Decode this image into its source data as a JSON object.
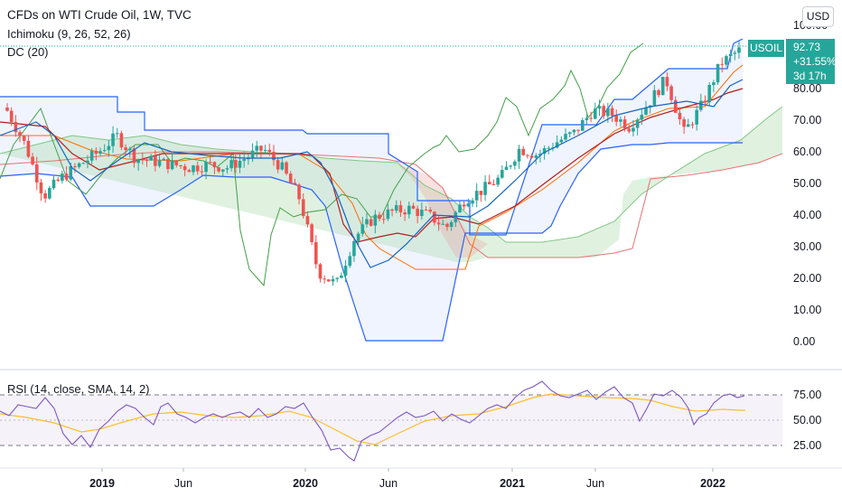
{
  "legend": {
    "title": "CFDs on WTI Crude Oil, 1W, TVC",
    "ichimoku": "Ichimoku (9, 26, 52, 26)",
    "donchian": "DC (20)",
    "rsi": "RSI (14, close, SMA, 14, 2)"
  },
  "currency": "USD",
  "last_price": {
    "ticker": "USOIL",
    "price": "92.73",
    "change": "+31.55%",
    "countdown": "3d 17h"
  },
  "colors": {
    "up": "#26a69a",
    "down": "#ef5350",
    "tenkan": "#2962ff",
    "kijun": "#b71c1c",
    "chikou": "#43a047",
    "span_a": "#a5d6a7",
    "span_b": "#ef9a9a",
    "dc_band": "#2962ff",
    "dc_basis": "#ff6d00",
    "rsi": "#7e57c2",
    "rsi_ma": "#fbc02d"
  },
  "chart_data": [
    {
      "type": "candlestick",
      "title": "CFDs on WTI Crude Oil, 1W, TVC",
      "ylim": [
        -5,
        105
      ],
      "y_ticks": [
        "100.00",
        "90.00",
        "80.00",
        "70.00",
        "60.00",
        "50.00",
        "40.00",
        "30.00",
        "20.00",
        "10.00",
        "0.00"
      ],
      "x_ticks": [
        "2019",
        "Jun",
        "2020",
        "Jun",
        "2021",
        "Jun",
        "2022"
      ],
      "x_range": [
        "2018-09",
        "2022-03"
      ],
      "close_points": [
        [
          "2018-10",
          73
        ],
        [
          "2018-11",
          62
        ],
        [
          "2018-12",
          46
        ],
        [
          "2019-01",
          52
        ],
        [
          "2019-02",
          56
        ],
        [
          "2019-03",
          60
        ],
        [
          "2019-04",
          65
        ],
        [
          "2019-05",
          58
        ],
        [
          "2019-06",
          57
        ],
        [
          "2019-07",
          56
        ],
        [
          "2019-08",
          55
        ],
        [
          "2019-09",
          56
        ],
        [
          "2019-10",
          55
        ],
        [
          "2019-11",
          58
        ],
        [
          "2019-12",
          61
        ],
        [
          "2020-01",
          55
        ],
        [
          "2020-02",
          45
        ],
        [
          "2020-03",
          22
        ],
        [
          "2020-04",
          18
        ],
        [
          "2020-05",
          33
        ],
        [
          "2020-06",
          39
        ],
        [
          "2020-07",
          41
        ],
        [
          "2020-08",
          42
        ],
        [
          "2020-09",
          40
        ],
        [
          "2020-10",
          36
        ],
        [
          "2020-11",
          45
        ],
        [
          "2020-12",
          48
        ],
        [
          "2021-01",
          52
        ],
        [
          "2021-02",
          61
        ],
        [
          "2021-03",
          59
        ],
        [
          "2021-04",
          63
        ],
        [
          "2021-05",
          66
        ],
        [
          "2021-06",
          73
        ],
        [
          "2021-07",
          72
        ],
        [
          "2021-08",
          68
        ],
        [
          "2021-09",
          75
        ],
        [
          "2021-10",
          83
        ],
        [
          "2021-11",
          66
        ],
        [
          "2021-12",
          75
        ],
        [
          "2022-01",
          88
        ],
        [
          "2022-02",
          92
        ]
      ],
      "indicators": [
        "Ichimoku (9, 26, 52, 26)",
        "DC (20)"
      ]
    },
    {
      "type": "line",
      "title": "RSI (14, close, SMA, 14, 2)",
      "ylim": [
        15,
        85
      ],
      "y_ticks": [
        "75.00",
        "50.00",
        "25.00"
      ],
      "band": [
        30,
        70
      ],
      "midline": 50
    }
  ]
}
